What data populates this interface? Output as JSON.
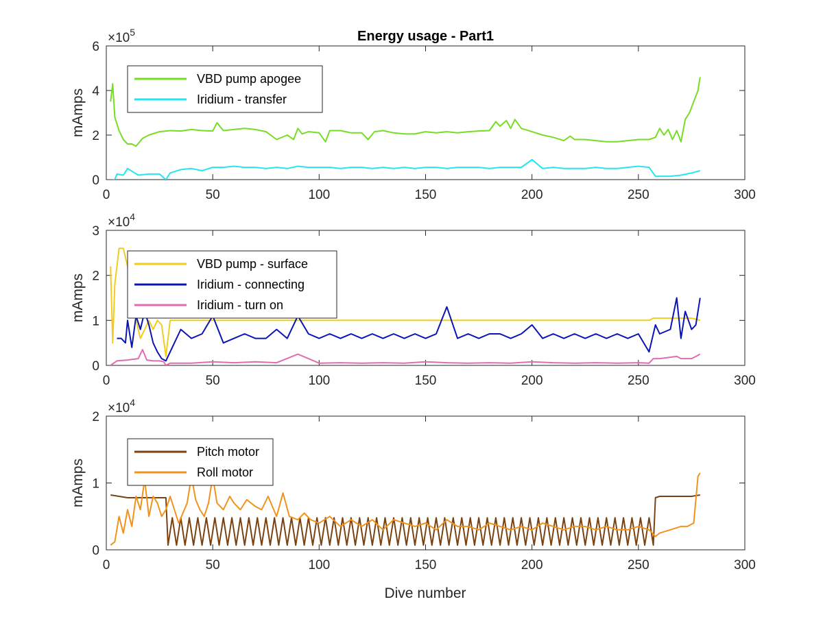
{
  "figure": {
    "background": "#ffffff",
    "xlabel": "Dive number"
  },
  "chart_data": [
    {
      "type": "line",
      "title": "Energy usage - Part1",
      "ylabel": "mAmps",
      "exponent_label": "×10",
      "exponent_power": "5",
      "xlim": [
        0,
        300
      ],
      "ylim": [
        0,
        600000
      ],
      "xticks": [
        0,
        50,
        100,
        150,
        200,
        250,
        300
      ],
      "yticks": [
        0,
        200000,
        400000,
        600000
      ],
      "ytick_labels": [
        "0",
        "2",
        "4",
        "6"
      ],
      "legend_position": "top-left",
      "series": [
        {
          "name": "VBD pump apogee",
          "color": "#77dd22",
          "x": [
            2,
            3,
            4,
            6,
            8,
            10,
            12,
            14,
            17,
            20,
            25,
            30,
            35,
            40,
            45,
            50,
            52,
            55,
            60,
            65,
            70,
            75,
            80,
            85,
            88,
            90,
            92,
            95,
            100,
            103,
            105,
            110,
            115,
            120,
            123,
            126,
            130,
            135,
            140,
            145,
            150,
            155,
            160,
            165,
            170,
            175,
            180,
            183,
            185,
            188,
            190,
            192,
            195,
            200,
            205,
            210,
            215,
            218,
            220,
            225,
            230,
            235,
            240,
            245,
            250,
            255,
            258,
            260,
            262,
            264,
            266,
            268,
            270,
            272,
            274,
            276,
            278,
            279
          ],
          "values": [
            350000,
            430000,
            280000,
            220000,
            180000,
            160000,
            160000,
            150000,
            185000,
            200000,
            215000,
            220000,
            218000,
            225000,
            220000,
            218000,
            255000,
            220000,
            225000,
            230000,
            225000,
            215000,
            180000,
            200000,
            180000,
            230000,
            205000,
            215000,
            210000,
            170000,
            220000,
            220000,
            210000,
            210000,
            180000,
            215000,
            220000,
            210000,
            205000,
            205000,
            215000,
            210000,
            215000,
            210000,
            215000,
            218000,
            220000,
            260000,
            240000,
            265000,
            230000,
            270000,
            230000,
            215000,
            200000,
            190000,
            175000,
            195000,
            180000,
            180000,
            175000,
            170000,
            170000,
            175000,
            180000,
            180000,
            190000,
            230000,
            200000,
            225000,
            180000,
            220000,
            170000,
            270000,
            300000,
            350000,
            400000,
            460000
          ]
        },
        {
          "name": "Iridium - transfer",
          "color": "#22e6f0",
          "x": [
            2,
            4,
            5,
            8,
            10,
            15,
            20,
            25,
            28,
            30,
            35,
            40,
            45,
            50,
            55,
            60,
            65,
            70,
            75,
            80,
            85,
            90,
            95,
            100,
            105,
            110,
            115,
            120,
            125,
            130,
            135,
            140,
            145,
            150,
            155,
            160,
            165,
            170,
            175,
            180,
            185,
            190,
            195,
            200,
            205,
            210,
            215,
            220,
            225,
            230,
            235,
            240,
            245,
            250,
            255,
            258,
            260,
            265,
            270,
            275,
            279
          ],
          "values": [
            0,
            0,
            25000,
            20000,
            50000,
            20000,
            25000,
            25000,
            0,
            30000,
            45000,
            50000,
            40000,
            55000,
            55000,
            60000,
            55000,
            55000,
            50000,
            55000,
            50000,
            60000,
            55000,
            55000,
            55000,
            50000,
            55000,
            55000,
            50000,
            55000,
            50000,
            55000,
            50000,
            55000,
            55000,
            50000,
            55000,
            55000,
            55000,
            50000,
            55000,
            55000,
            55000,
            90000,
            50000,
            55000,
            50000,
            50000,
            50000,
            55000,
            50000,
            50000,
            55000,
            60000,
            55000,
            15000,
            15000,
            15000,
            20000,
            30000,
            40000
          ]
        }
      ]
    },
    {
      "type": "line",
      "title": "",
      "ylabel": "mAmps",
      "exponent_label": "×10",
      "exponent_power": "4",
      "xlim": [
        0,
        300
      ],
      "ylim": [
        0,
        30000
      ],
      "xticks": [
        0,
        50,
        100,
        150,
        200,
        250,
        300
      ],
      "yticks": [
        0,
        10000,
        20000,
        30000
      ],
      "ytick_labels": [
        "0",
        "1",
        "2",
        "3"
      ],
      "legend_position": "top-left",
      "series": [
        {
          "name": "VBD pump - surface",
          "color": "#f2cc1c",
          "x": [
            2,
            3,
            4,
            6,
            8,
            10,
            12,
            14,
            16,
            18,
            20,
            22,
            24,
            26,
            28,
            30,
            35,
            40,
            45,
            50,
            55,
            60,
            65,
            70,
            75,
            80,
            85,
            90,
            95,
            100,
            105,
            110,
            115,
            120,
            125,
            130,
            135,
            140,
            145,
            150,
            155,
            160,
            165,
            170,
            175,
            180,
            185,
            190,
            195,
            200,
            205,
            210,
            215,
            220,
            225,
            230,
            235,
            240,
            245,
            250,
            255,
            257,
            260,
            265,
            270,
            275,
            279
          ],
          "values": [
            22000,
            5000,
            18000,
            26000,
            26000,
            22000,
            15000,
            10000,
            6000,
            8000,
            10000,
            8000,
            10000,
            9000,
            2000,
            10000,
            10000,
            10000,
            10000,
            10000,
            10000,
            10000,
            10000,
            10000,
            10000,
            10000,
            10000,
            10000,
            10000,
            10000,
            10000,
            10000,
            10000,
            10000,
            10000,
            10000,
            10000,
            10000,
            10000,
            10000,
            10000,
            10000,
            10000,
            10000,
            10000,
            10000,
            10000,
            10000,
            10000,
            10000,
            10000,
            10000,
            10000,
            10000,
            10000,
            10000,
            10000,
            10000,
            10000,
            10000,
            10000,
            10500,
            10500,
            10500,
            10500,
            10500,
            10000
          ]
        },
        {
          "name": "Iridium - connecting",
          "color": "#0a14b4",
          "x": [
            5,
            7,
            9,
            10,
            12,
            14,
            16,
            18,
            20,
            22,
            24,
            26,
            28,
            30,
            35,
            40,
            45,
            50,
            55,
            60,
            65,
            70,
            75,
            80,
            85,
            90,
            95,
            100,
            105,
            110,
            115,
            120,
            125,
            130,
            135,
            140,
            145,
            150,
            155,
            160,
            165,
            170,
            175,
            180,
            185,
            190,
            195,
            200,
            205,
            210,
            215,
            220,
            225,
            230,
            235,
            240,
            245,
            250,
            255,
            258,
            260,
            265,
            268,
            270,
            272,
            275,
            277,
            279
          ],
          "values": [
            6000,
            6000,
            5000,
            10000,
            4000,
            11000,
            8000,
            12000,
            9000,
            5000,
            3000,
            1500,
            1000,
            3000,
            8000,
            6000,
            7000,
            11000,
            5000,
            6000,
            7000,
            6000,
            6000,
            8000,
            6000,
            11000,
            7000,
            6000,
            7000,
            6000,
            7000,
            6000,
            7000,
            6000,
            7000,
            6000,
            7000,
            6000,
            7000,
            13000,
            6000,
            7000,
            6000,
            7000,
            7000,
            6000,
            7000,
            9000,
            6000,
            7000,
            6000,
            7000,
            6000,
            7000,
            6000,
            7000,
            6000,
            7000,
            3000,
            9000,
            7000,
            8000,
            15000,
            6000,
            12000,
            8000,
            9000,
            15000
          ]
        },
        {
          "name": "Iridium - turn on",
          "color": "#e06cb0",
          "x": [
            2,
            5,
            10,
            15,
            17,
            19,
            22,
            25,
            27,
            28,
            30,
            40,
            50,
            60,
            70,
            80,
            90,
            100,
            110,
            120,
            130,
            140,
            150,
            160,
            170,
            180,
            190,
            200,
            210,
            220,
            230,
            240,
            250,
            255,
            257,
            260,
            268,
            270,
            275,
            279
          ],
          "values": [
            0,
            1000,
            1200,
            1500,
            3500,
            1200,
            1000,
            1000,
            800,
            0,
            500,
            500,
            800,
            600,
            800,
            600,
            2500,
            500,
            600,
            500,
            600,
            500,
            800,
            600,
            500,
            600,
            500,
            800,
            600,
            500,
            600,
            500,
            600,
            500,
            1500,
            1500,
            2000,
            1500,
            1500,
            2500
          ]
        }
      ]
    },
    {
      "type": "line",
      "title": "",
      "ylabel": "mAmps",
      "xlabel": "Dive number",
      "exponent_label": "×10",
      "exponent_power": "4",
      "xlim": [
        0,
        300
      ],
      "ylim": [
        0,
        20000
      ],
      "xticks": [
        0,
        50,
        100,
        150,
        200,
        250,
        300
      ],
      "yticks": [
        0,
        10000,
        20000
      ],
      "ytick_labels": [
        "0",
        "1",
        "2"
      ],
      "legend_position": "top-left",
      "series": [
        {
          "name": "Pitch motor",
          "color": "#7a4210",
          "x": [
            2,
            10,
            20,
            28,
            29,
            257,
            258,
            260,
            265,
            270,
            275,
            279
          ],
          "values": [
            8200,
            7800,
            7800,
            7800,
            3000,
            3000,
            7800,
            8000,
            8000,
            8000,
            8000,
            8200
          ],
          "oscillate": {
            "from": 29,
            "to": 257,
            "period": 4,
            "low": 700,
            "high": 4800
          }
        },
        {
          "name": "Roll motor",
          "color": "#f0921c",
          "x": [
            2,
            4,
            6,
            8,
            10,
            12,
            14,
            16,
            18,
            20,
            22,
            24,
            26,
            28,
            30,
            32,
            34,
            36,
            38,
            40,
            42,
            44,
            46,
            48,
            50,
            52,
            55,
            58,
            60,
            63,
            66,
            70,
            73,
            76,
            80,
            83,
            86,
            90,
            93,
            96,
            100,
            105,
            110,
            115,
            120,
            125,
            130,
            135,
            140,
            145,
            150,
            155,
            160,
            165,
            170,
            175,
            180,
            185,
            190,
            195,
            200,
            205,
            210,
            215,
            220,
            225,
            230,
            235,
            240,
            245,
            250,
            255,
            258,
            260,
            265,
            270,
            273,
            276,
            278,
            279
          ],
          "values": [
            700,
            1200,
            5000,
            2500,
            6000,
            3500,
            8000,
            6000,
            10500,
            5000,
            8000,
            7000,
            5000,
            6000,
            8000,
            6000,
            4000,
            5500,
            7000,
            11000,
            7500,
            6000,
            5000,
            7000,
            11000,
            7000,
            6000,
            8000,
            7000,
            6000,
            7500,
            6500,
            6000,
            8000,
            5000,
            8500,
            5000,
            4500,
            5500,
            4500,
            4000,
            5000,
            3500,
            4500,
            3500,
            4500,
            3000,
            4500,
            4000,
            3500,
            4000,
            3000,
            4500,
            3500,
            3500,
            3000,
            4000,
            3500,
            3000,
            3500,
            3000,
            4000,
            3500,
            3000,
            3500,
            3500,
            3000,
            3500,
            3000,
            3000,
            3500,
            3000,
            2000,
            2500,
            3000,
            3500,
            3500,
            4000,
            11000,
            11500
          ]
        }
      ]
    }
  ]
}
